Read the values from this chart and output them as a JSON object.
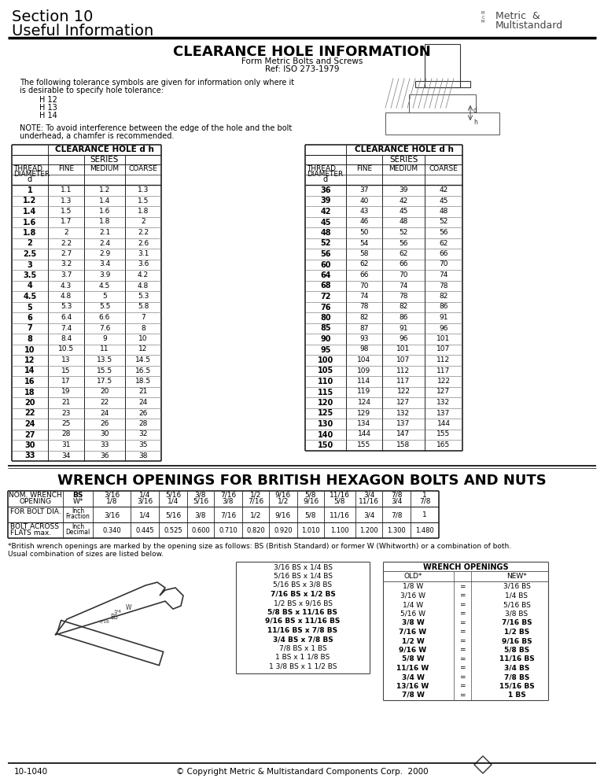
{
  "page_title_line1": "Section 10",
  "page_title_line2": "Useful Information",
  "main_title": "CLEARANCE HOLE INFORMATION",
  "subtitle1": "Form Metric Bolts and Screws",
  "subtitle2": "Ref: ISO 273-1979",
  "table1_data": [
    [
      "1",
      "1.1",
      "1.2",
      "1.3"
    ],
    [
      "1.2",
      "1.3",
      "1.4",
      "1.5"
    ],
    [
      "1.4",
      "1.5",
      "1.6",
      "1.8"
    ],
    [
      "1.6",
      "1.7",
      "1.8",
      "2"
    ],
    [
      "1.8",
      "2",
      "2.1",
      "2.2"
    ],
    [
      "2",
      "2.2",
      "2.4",
      "2.6"
    ],
    [
      "2.5",
      "2.7",
      "2.9",
      "3.1"
    ],
    [
      "3",
      "3.2",
      "3.4",
      "3.6"
    ],
    [
      "3.5",
      "3.7",
      "3.9",
      "4.2"
    ],
    [
      "4",
      "4.3",
      "4.5",
      "4.8"
    ],
    [
      "4.5",
      "4.8",
      "5",
      "5.3"
    ],
    [
      "5",
      "5.3",
      "5.5",
      "5.8"
    ],
    [
      "6",
      "6.4",
      "6.6",
      "7"
    ],
    [
      "7",
      "7.4",
      "7.6",
      "8"
    ],
    [
      "8",
      "8.4",
      "9",
      "10"
    ],
    [
      "10",
      "10.5",
      "11",
      "12"
    ],
    [
      "12",
      "13",
      "13.5",
      "14.5"
    ],
    [
      "14",
      "15",
      "15.5",
      "16.5"
    ],
    [
      "16",
      "17",
      "17.5",
      "18.5"
    ],
    [
      "18",
      "19",
      "20",
      "21"
    ],
    [
      "20",
      "21",
      "22",
      "24"
    ],
    [
      "22",
      "23",
      "24",
      "26"
    ],
    [
      "24",
      "25",
      "26",
      "28"
    ],
    [
      "27",
      "28",
      "30",
      "32"
    ],
    [
      "30",
      "31",
      "33",
      "35"
    ],
    [
      "33",
      "34",
      "36",
      "38"
    ]
  ],
  "table2_data": [
    [
      "36",
      "37",
      "39",
      "42"
    ],
    [
      "39",
      "40",
      "42",
      "45"
    ],
    [
      "42",
      "43",
      "45",
      "48"
    ],
    [
      "45",
      "46",
      "48",
      "52"
    ],
    [
      "48",
      "50",
      "52",
      "56"
    ],
    [
      "52",
      "54",
      "56",
      "62"
    ],
    [
      "56",
      "58",
      "62",
      "66"
    ],
    [
      "60",
      "62",
      "66",
      "70"
    ],
    [
      "64",
      "66",
      "70",
      "74"
    ],
    [
      "68",
      "70",
      "74",
      "78"
    ],
    [
      "72",
      "74",
      "78",
      "82"
    ],
    [
      "76",
      "78",
      "82",
      "86"
    ],
    [
      "80",
      "82",
      "86",
      "91"
    ],
    [
      "85",
      "87",
      "91",
      "96"
    ],
    [
      "90",
      "93",
      "96",
      "101"
    ],
    [
      "95",
      "98",
      "101",
      "107"
    ],
    [
      "100",
      "104",
      "107",
      "112"
    ],
    [
      "105",
      "109",
      "112",
      "117"
    ],
    [
      "110",
      "114",
      "117",
      "122"
    ],
    [
      "115",
      "119",
      "122",
      "127"
    ],
    [
      "120",
      "124",
      "127",
      "132"
    ],
    [
      "125",
      "129",
      "132",
      "137"
    ],
    [
      "130",
      "134",
      "137",
      "144"
    ],
    [
      "140",
      "144",
      "147",
      "155"
    ],
    [
      "150",
      "155",
      "158",
      "165"
    ]
  ],
  "wrench_title": "WRENCH OPENINGS FOR BRITISH HEXAGON BOLTS AND NUTS",
  "wrench_row1_vals": [
    "3/16",
    "1/4",
    "5/16",
    "3/8",
    "7/16",
    "1/2",
    "9/16",
    "5/8",
    "11/16",
    "3/4",
    "7/8",
    "1"
  ],
  "wrench_row2_vals": [
    "0.340",
    "0.445",
    "0.525",
    "0.600",
    "0.710",
    "0.820",
    "0.920",
    "1.010",
    "1.100",
    "1.200",
    "1.300",
    "1.480"
  ],
  "footnote_line1": "*British wrench openings are marked by the opening size as follows: BS (British Standard) or former W (Whitworth) or a combination of both.",
  "footnote_line2": "Usual combination of sizes are listed below.",
  "combo_sizes": [
    [
      "3/16 BS x 1/4 BS",
      false
    ],
    [
      "5/16 BS x 1/4 BS",
      false
    ],
    [
      "5/16 BS x 3/8 BS",
      false
    ],
    [
      "7/16 BS x 1/2 BS",
      true
    ],
    [
      "1/2 BS x 9/16 BS",
      false
    ],
    [
      "5/8 BS x 11/16 BS",
      true
    ],
    [
      "9/16 BS x 11/16 BS",
      true
    ],
    [
      "11/16 BS x 7/8 BS",
      true
    ],
    [
      "3/4 BS x 7/8 BS",
      true
    ],
    [
      "7/8 BS x 1 BS",
      false
    ],
    [
      "1 BS x 1 1/8 BS",
      false
    ],
    [
      "1 3/8 BS x 1 1/2 BS",
      false
    ]
  ],
  "wrench_old": [
    "1/8 W",
    "3/16 W",
    "1/4 W",
    "5/16 W",
    "3/8 W",
    "7/16 W",
    "1/2 W",
    "9/16 W",
    "5/8 W",
    "11/16 W",
    "3/4 W",
    "13/16 W",
    "7/8 W"
  ],
  "wrench_new": [
    "3/16 BS",
    "1/4 BS",
    "5/16 BS",
    "3/8 BS",
    "7/16 BS",
    "1/2 BS",
    "9/16 BS",
    "5/8 BS",
    "11/16 BS",
    "3/4 BS",
    "7/8 BS",
    "15/16 BS",
    "1 BS"
  ],
  "wrench_bold_rows": [
    4,
    5,
    6,
    7,
    8,
    9,
    10,
    11,
    12
  ],
  "footer_left": "10-1040",
  "footer_right": "© Copyright Metric & Multistandard Components Corp.  2000",
  "bg_color": "#ffffff"
}
